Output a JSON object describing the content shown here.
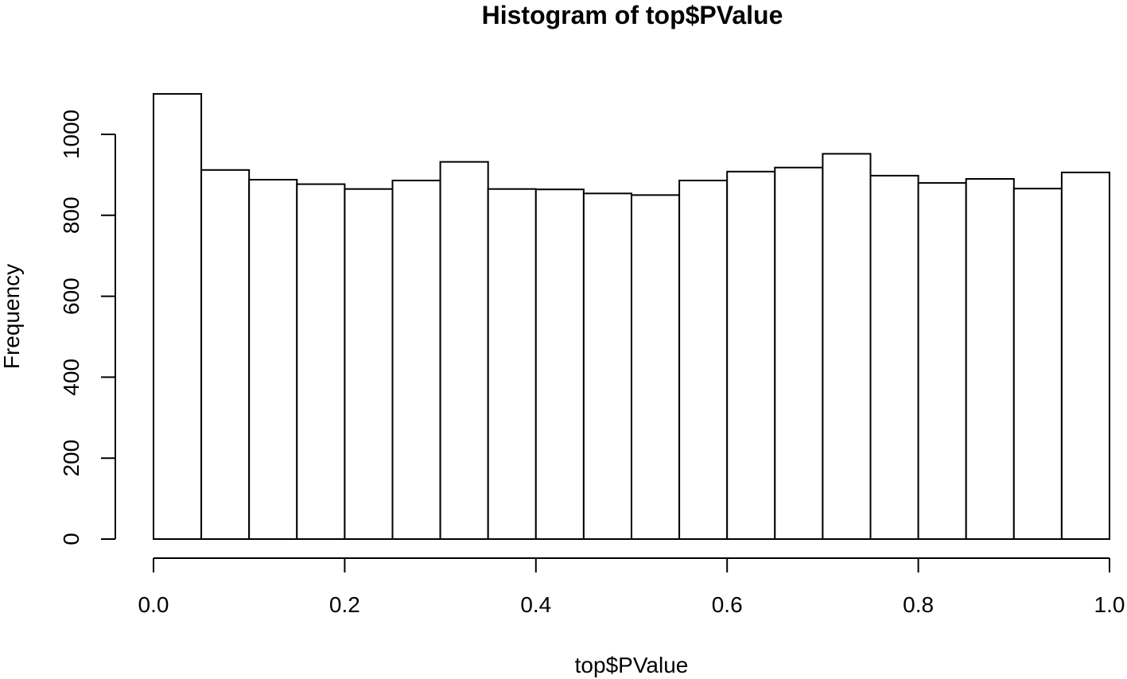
{
  "chart_data": {
    "type": "bar",
    "title": "Histogram of top$PValue",
    "xlabel": "top$PValue",
    "ylabel": "Frequency",
    "xlim": [
      0,
      1
    ],
    "ylim": [
      0,
      1100
    ],
    "x_ticks": [
      0.0,
      0.2,
      0.4,
      0.6,
      0.8,
      1.0
    ],
    "x_tick_labels": [
      "0.0",
      "0.2",
      "0.4",
      "0.6",
      "0.8",
      "1.0"
    ],
    "y_ticks": [
      0,
      200,
      400,
      600,
      800,
      1000
    ],
    "y_tick_labels": [
      "0",
      "200",
      "400",
      "600",
      "800",
      "1000"
    ],
    "bin_width": 0.05,
    "bins": [
      {
        "start": 0.0,
        "end": 0.05,
        "count": 1100
      },
      {
        "start": 0.05,
        "end": 0.1,
        "count": 912
      },
      {
        "start": 0.1,
        "end": 0.15,
        "count": 888
      },
      {
        "start": 0.15,
        "end": 0.2,
        "count": 877
      },
      {
        "start": 0.2,
        "end": 0.25,
        "count": 865
      },
      {
        "start": 0.25,
        "end": 0.3,
        "count": 886
      },
      {
        "start": 0.3,
        "end": 0.35,
        "count": 932
      },
      {
        "start": 0.35,
        "end": 0.4,
        "count": 865
      },
      {
        "start": 0.4,
        "end": 0.45,
        "count": 864
      },
      {
        "start": 0.45,
        "end": 0.5,
        "count": 854
      },
      {
        "start": 0.5,
        "end": 0.55,
        "count": 850
      },
      {
        "start": 0.55,
        "end": 0.6,
        "count": 886
      },
      {
        "start": 0.6,
        "end": 0.65,
        "count": 908
      },
      {
        "start": 0.65,
        "end": 0.7,
        "count": 918
      },
      {
        "start": 0.7,
        "end": 0.75,
        "count": 952
      },
      {
        "start": 0.75,
        "end": 0.8,
        "count": 898
      },
      {
        "start": 0.8,
        "end": 0.85,
        "count": 880
      },
      {
        "start": 0.85,
        "end": 0.9,
        "count": 890
      },
      {
        "start": 0.9,
        "end": 0.95,
        "count": 866
      },
      {
        "start": 0.95,
        "end": 1.0,
        "count": 906
      }
    ],
    "grid": false,
    "legend": "none"
  }
}
